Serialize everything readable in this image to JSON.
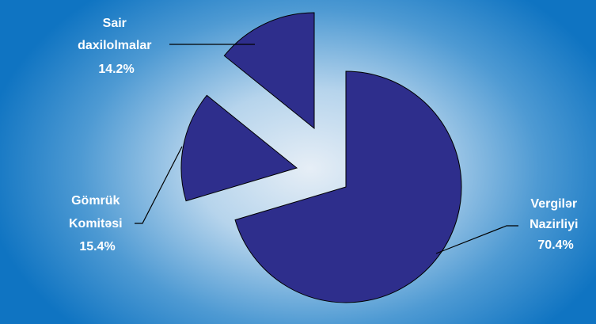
{
  "chart_data": {
    "type": "pie",
    "title": "",
    "slices": [
      {
        "name_lines": [
          "Vergilər",
          "Nazirliyi"
        ],
        "value": 70.4,
        "value_label": "70.4%"
      },
      {
        "name_lines": [
          "Gömrük",
          "Komitəsi"
        ],
        "value": 15.4,
        "value_label": "15.4%"
      },
      {
        "name_lines": [
          "Sair",
          "daxilolmalar"
        ],
        "value": 14.2,
        "value_label": "14.2%"
      }
    ],
    "exploded": true,
    "legend": "none",
    "colors": {
      "slice": "#2e2e8c",
      "label": "#ffffff",
      "background_edge": "#0f74c2",
      "background_center": "#e6eef6"
    }
  }
}
